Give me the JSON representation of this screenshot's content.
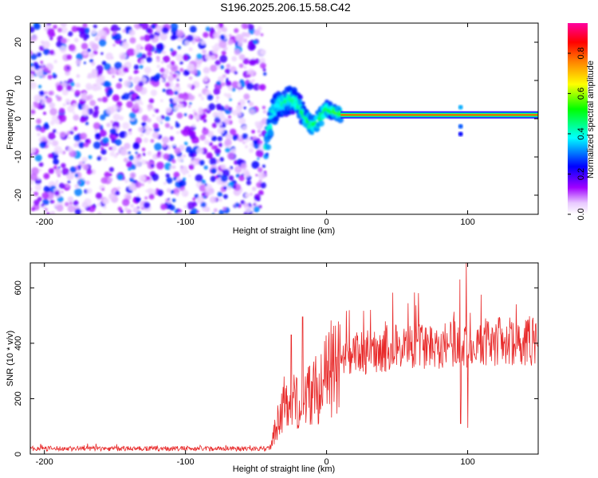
{
  "title": "S196.2025.206.15.58.C42",
  "chart_data": [
    {
      "type": "heatmap",
      "xlabel": "Height of straight line (km)",
      "ylabel": "Frequency (Hz)",
      "xlim": [
        -210,
        150
      ],
      "ylim": [
        -25,
        25
      ],
      "x_ticks": [
        "-200",
        "-100",
        "0",
        "100"
      ],
      "x_tick_values": [
        -200,
        -100,
        0,
        100
      ],
      "y_ticks": [
        "20",
        "10",
        "0",
        "-10",
        "-20"
      ],
      "y_tick_values": [
        20,
        10,
        0,
        -10,
        -20
      ],
      "colorbar": {
        "label": "Normalized spectral amplitude",
        "range": [
          0.0,
          0.95
        ],
        "ticks": [
          "0.0",
          "0.2",
          "0.4",
          "0.6",
          "0.8"
        ],
        "tick_values": [
          0.0,
          0.2,
          0.4,
          0.6,
          0.8
        ],
        "colors": [
          "#ffffff",
          "#a000ff",
          "#0000ff",
          "#00ffff",
          "#00ff00",
          "#ffff00",
          "#ff8000",
          "#ff0000",
          "#ff00a0"
        ]
      },
      "regions": [
        {
          "x_range": [
            -210,
            -43
          ],
          "freq_range": [
            -25,
            25
          ],
          "description_level": 0.15
        },
        {
          "x_range": [
            -43,
            10
          ],
          "ridge_freq": [
            [
              -42,
              -6
            ],
            [
              -38,
              2
            ],
            [
              -32,
              4
            ],
            [
              -25,
              5
            ],
            [
              -20,
              4
            ],
            [
              -15,
              0
            ],
            [
              -10,
              -2
            ],
            [
              -5,
              0
            ],
            [
              0,
              2.5
            ],
            [
              5,
              2
            ],
            [
              10,
              1
            ]
          ],
          "level": 0.45
        },
        {
          "x_range": [
            10,
            150
          ],
          "ridge_freq": [
            [
              10,
              1
            ],
            [
              150,
              1
            ]
          ],
          "level": 0.9
        }
      ]
    },
    {
      "type": "line",
      "xlabel": "Height of straight line (km)",
      "ylabel": "SNR (10 * v/v)",
      "xlim": [
        -210,
        150
      ],
      "ylim": [
        0,
        690
      ],
      "x_ticks": [
        "-200",
        "-100",
        "0",
        "100"
      ],
      "x_tick_values": [
        -200,
        -100,
        0,
        100
      ],
      "y_ticks": [
        "0",
        "200",
        "400",
        "600"
      ],
      "y_tick_values": [
        0,
        200,
        400,
        600
      ],
      "color": "#e82a2a",
      "envelope": [
        [
          -210,
          20
        ],
        [
          -40,
          20
        ],
        [
          -33,
          150
        ],
        [
          -25,
          180
        ],
        [
          -15,
          210
        ],
        [
          -5,
          240
        ],
        [
          0,
          280
        ],
        [
          10,
          320
        ],
        [
          20,
          360
        ],
        [
          40,
          380
        ],
        [
          60,
          390
        ],
        [
          80,
          395
        ],
        [
          100,
          400
        ],
        [
          120,
          405
        ],
        [
          150,
          410
        ]
      ],
      "spikes": [
        [
          -30,
          280
        ],
        [
          -25,
          430
        ],
        [
          -17,
          495
        ],
        [
          0,
          310
        ],
        [
          95,
          110
        ],
        [
          99,
          690
        ],
        [
          100,
          95
        ]
      ]
    }
  ]
}
